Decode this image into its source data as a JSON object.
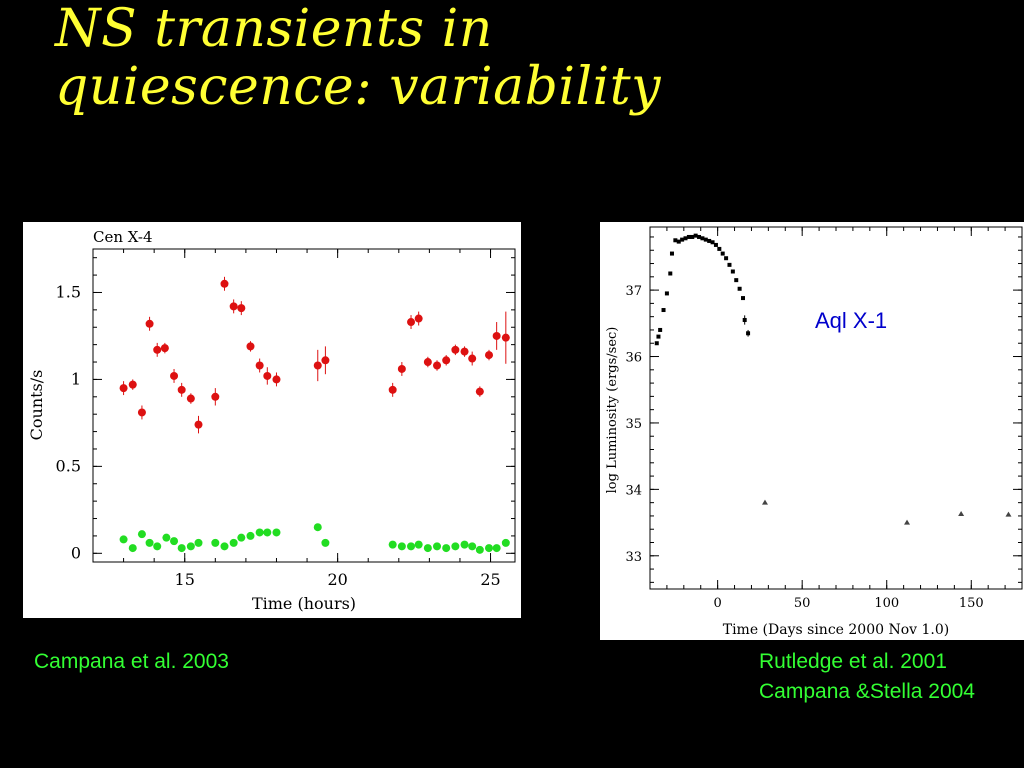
{
  "slide": {
    "title_line1": "NS transients in",
    "title_line2": "quiescence: variability",
    "citation_left": "Campana et al. 2003",
    "citation_right_line1": "Rutledge et al. 2001",
    "citation_right_line2": "Campana &Stella 2004",
    "colors": {
      "background": "#000000",
      "title": "#ffff33",
      "citation": "#33ff33",
      "annotation": "#0000cc"
    }
  },
  "chart_data": [
    {
      "type": "scatter",
      "title": "Cen X-4",
      "xlabel": "Time (hours)",
      "ylabel": "Counts/s",
      "xlim": [
        12.0,
        25.8
      ],
      "ylim": [
        -0.05,
        1.75
      ],
      "xticks": [
        15,
        20,
        25
      ],
      "yticks": [
        0,
        0.5,
        1,
        1.5
      ],
      "ytick_labels": [
        "0",
        "0.5",
        "1",
        "1.5"
      ],
      "series": [
        {
          "color": "#dd1111",
          "points": [
            {
              "x": 13.0,
              "y": 0.95,
              "err": 0.04
            },
            {
              "x": 13.3,
              "y": 0.97,
              "err": 0.03
            },
            {
              "x": 13.6,
              "y": 0.81,
              "err": 0.04
            },
            {
              "x": 13.85,
              "y": 1.32,
              "err": 0.04
            },
            {
              "x": 14.1,
              "y": 1.17,
              "err": 0.04
            },
            {
              "x": 14.35,
              "y": 1.18,
              "err": 0.03
            },
            {
              "x": 14.65,
              "y": 1.02,
              "err": 0.04
            },
            {
              "x": 14.9,
              "y": 0.94,
              "err": 0.04
            },
            {
              "x": 15.2,
              "y": 0.89,
              "err": 0.03
            },
            {
              "x": 15.45,
              "y": 0.74,
              "err": 0.05
            },
            {
              "x": 16.0,
              "y": 0.9,
              "err": 0.05
            },
            {
              "x": 16.3,
              "y": 1.55,
              "err": 0.04
            },
            {
              "x": 16.6,
              "y": 1.42,
              "err": 0.04
            },
            {
              "x": 16.85,
              "y": 1.41,
              "err": 0.04
            },
            {
              "x": 17.15,
              "y": 1.19,
              "err": 0.03
            },
            {
              "x": 17.45,
              "y": 1.08,
              "err": 0.04
            },
            {
              "x": 17.7,
              "y": 1.02,
              "err": 0.05
            },
            {
              "x": 18.0,
              "y": 1.0,
              "err": 0.04
            },
            {
              "x": 19.35,
              "y": 1.08,
              "err": 0.09
            },
            {
              "x": 19.6,
              "y": 1.11,
              "err": 0.08
            },
            {
              "x": 21.8,
              "y": 0.94,
              "err": 0.04
            },
            {
              "x": 22.1,
              "y": 1.06,
              "err": 0.04
            },
            {
              "x": 22.4,
              "y": 1.33,
              "err": 0.04
            },
            {
              "x": 22.65,
              "y": 1.35,
              "err": 0.04
            },
            {
              "x": 22.95,
              "y": 1.1,
              "err": 0.03
            },
            {
              "x": 23.25,
              "y": 1.08,
              "err": 0.03
            },
            {
              "x": 23.55,
              "y": 1.11,
              "err": 0.03
            },
            {
              "x": 23.85,
              "y": 1.17,
              "err": 0.03
            },
            {
              "x": 24.15,
              "y": 1.16,
              "err": 0.03
            },
            {
              "x": 24.4,
              "y": 1.12,
              "err": 0.04
            },
            {
              "x": 24.65,
              "y": 0.93,
              "err": 0.03
            },
            {
              "x": 24.95,
              "y": 1.14,
              "err": 0.03
            },
            {
              "x": 25.2,
              "y": 1.25,
              "err": 0.08
            },
            {
              "x": 25.5,
              "y": 1.24,
              "err": 0.15
            }
          ]
        },
        {
          "color": "#22dd22",
          "points": [
            {
              "x": 13.0,
              "y": 0.08
            },
            {
              "x": 13.3,
              "y": 0.03
            },
            {
              "x": 13.6,
              "y": 0.11
            },
            {
              "x": 13.85,
              "y": 0.06
            },
            {
              "x": 14.1,
              "y": 0.04
            },
            {
              "x": 14.4,
              "y": 0.09
            },
            {
              "x": 14.65,
              "y": 0.07
            },
            {
              "x": 14.9,
              "y": 0.03
            },
            {
              "x": 15.2,
              "y": 0.04
            },
            {
              "x": 15.45,
              "y": 0.06
            },
            {
              "x": 16.0,
              "y": 0.06
            },
            {
              "x": 16.3,
              "y": 0.04
            },
            {
              "x": 16.6,
              "y": 0.06
            },
            {
              "x": 16.85,
              "y": 0.09
            },
            {
              "x": 17.15,
              "y": 0.1
            },
            {
              "x": 17.45,
              "y": 0.12
            },
            {
              "x": 17.7,
              "y": 0.12
            },
            {
              "x": 18.0,
              "y": 0.12
            },
            {
              "x": 19.35,
              "y": 0.15
            },
            {
              "x": 19.6,
              "y": 0.06
            },
            {
              "x": 21.8,
              "y": 0.05
            },
            {
              "x": 22.1,
              "y": 0.04
            },
            {
              "x": 22.4,
              "y": 0.04
            },
            {
              "x": 22.65,
              "y": 0.05
            },
            {
              "x": 22.95,
              "y": 0.03
            },
            {
              "x": 23.25,
              "y": 0.04
            },
            {
              "x": 23.55,
              "y": 0.03
            },
            {
              "x": 23.85,
              "y": 0.04
            },
            {
              "x": 24.15,
              "y": 0.05
            },
            {
              "x": 24.4,
              "y": 0.04
            },
            {
              "x": 24.65,
              "y": 0.02
            },
            {
              "x": 24.95,
              "y": 0.03
            },
            {
              "x": 25.2,
              "y": 0.03
            },
            {
              "x": 25.5,
              "y": 0.06
            }
          ]
        }
      ]
    },
    {
      "type": "scatter",
      "annotation": "Aql X-1",
      "xlabel": "Time (Days since 2000 Nov 1.0)",
      "ylabel": "log Luminosity (ergs/sec)",
      "xlim": [
        -40,
        180
      ],
      "ylim": [
        32.5,
        37.95
      ],
      "xticks": [
        0,
        50,
        100,
        150
      ],
      "yticks": [
        33,
        34,
        35,
        36,
        37
      ],
      "series": [
        {
          "color": "#000000",
          "marker": "square",
          "points": [
            {
              "x": -36,
              "y": 36.2
            },
            {
              "x": -35,
              "y": 36.3
            },
            {
              "x": -34,
              "y": 36.4
            },
            {
              "x": -32,
              "y": 36.7
            },
            {
              "x": -30,
              "y": 36.95
            },
            {
              "x": -28,
              "y": 37.25
            },
            {
              "x": -27,
              "y": 37.55
            },
            {
              "x": -25,
              "y": 37.75
            },
            {
              "x": -23,
              "y": 37.73
            },
            {
              "x": -21,
              "y": 37.76
            },
            {
              "x": -19,
              "y": 37.78
            },
            {
              "x": -17,
              "y": 37.8
            },
            {
              "x": -15,
              "y": 37.8
            },
            {
              "x": -13,
              "y": 37.82
            },
            {
              "x": -11,
              "y": 37.8
            },
            {
              "x": -9,
              "y": 37.78
            },
            {
              "x": -7,
              "y": 37.76
            },
            {
              "x": -5,
              "y": 37.74
            },
            {
              "x": -3,
              "y": 37.72
            },
            {
              "x": -1,
              "y": 37.68
            },
            {
              "x": 1,
              "y": 37.62
            },
            {
              "x": 3,
              "y": 37.55
            },
            {
              "x": 5,
              "y": 37.48
            },
            {
              "x": 7,
              "y": 37.38
            },
            {
              "x": 9,
              "y": 37.28
            },
            {
              "x": 11,
              "y": 37.15
            },
            {
              "x": 13,
              "y": 37.02
            },
            {
              "x": 15,
              "y": 36.88
            },
            {
              "x": 16,
              "y": 36.55,
              "err": 0.07
            },
            {
              "x": 18,
              "y": 36.35,
              "err": 0.05
            }
          ]
        },
        {
          "color": "#000000",
          "marker": "triangle",
          "points": [
            {
              "x": 28,
              "y": 33.8
            },
            {
              "x": 112,
              "y": 33.5
            },
            {
              "x": 144,
              "y": 33.63
            },
            {
              "x": 172,
              "y": 33.62
            }
          ]
        }
      ]
    }
  ]
}
